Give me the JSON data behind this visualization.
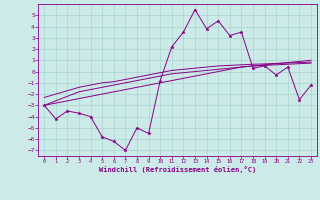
{
  "xlabel": "Windchill (Refroidissement éolien,°C)",
  "x": [
    0,
    1,
    2,
    3,
    4,
    5,
    6,
    7,
    8,
    9,
    10,
    11,
    12,
    13,
    14,
    15,
    16,
    17,
    18,
    19,
    20,
    21,
    22,
    23
  ],
  "line_main": [
    -3.0,
    -4.2,
    -3.5,
    -3.7,
    -4.0,
    -5.8,
    -6.2,
    -7.0,
    -5.0,
    -5.5,
    -0.8,
    2.2,
    3.5,
    5.5,
    3.8,
    4.5,
    3.2,
    3.5,
    0.3,
    0.5,
    -0.3,
    0.4,
    -2.5,
    -1.2
  ],
  "trend1": [
    -3.0,
    -2.8,
    -2.6,
    -2.4,
    -2.2,
    -2.0,
    -1.8,
    -1.6,
    -1.4,
    -1.2,
    -1.0,
    -0.8,
    -0.6,
    -0.4,
    -0.2,
    0.0,
    0.2,
    0.4,
    0.5,
    0.6,
    0.7,
    0.8,
    0.9,
    1.0
  ],
  "trend2": [
    -3.0,
    -2.6,
    -2.2,
    -1.8,
    -1.6,
    -1.4,
    -1.2,
    -1.0,
    -0.8,
    -0.6,
    -0.4,
    -0.2,
    -0.1,
    0.0,
    0.1,
    0.2,
    0.3,
    0.4,
    0.5,
    0.55,
    0.6,
    0.65,
    0.7,
    0.75
  ],
  "trend3": [
    -2.3,
    -2.0,
    -1.7,
    -1.4,
    -1.2,
    -1.0,
    -0.9,
    -0.7,
    -0.5,
    -0.3,
    -0.1,
    0.1,
    0.2,
    0.3,
    0.4,
    0.5,
    0.55,
    0.6,
    0.65,
    0.68,
    0.72,
    0.76,
    0.8,
    0.84
  ],
  "background_color": "#cceae8",
  "grid_color": "#aad4d0",
  "line_color": "#880088",
  "ylim": [
    -7.5,
    6.0
  ],
  "yticks": [
    -7,
    -6,
    -5,
    -4,
    -3,
    -2,
    -1,
    0,
    1,
    2,
    3,
    4,
    5
  ],
  "xlim": [
    -0.5,
    23.5
  ]
}
